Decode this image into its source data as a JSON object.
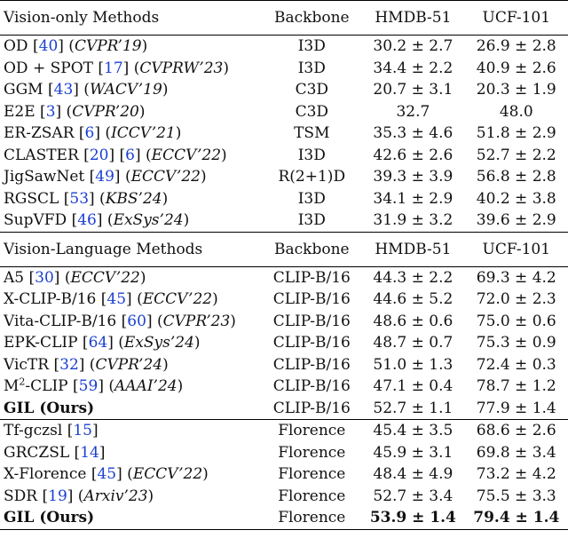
{
  "sections": [
    {
      "header": [
        "Vision-only Methods",
        "Backbone",
        "HMDB-51",
        "UCF-101"
      ],
      "rows": [
        {
          "name": "OD",
          "refs": [
            "40"
          ],
          "venue": "CVPR’19",
          "backbone": "I3D",
          "hmdb": "30.2 ± 2.7",
          "ucf": "26.9 ± 2.8"
        },
        {
          "name": "OD + SPOT",
          "refs": [
            "17"
          ],
          "venue": "CVPRW’23",
          "backbone": "I3D",
          "hmdb": "34.4 ± 2.2",
          "ucf": "40.9 ± 2.6"
        },
        {
          "name": "GGM",
          "refs": [
            "43"
          ],
          "venue": "WACV’19",
          "backbone": "C3D",
          "hmdb": "20.7 ± 3.1",
          "ucf": "20.3 ± 1.9"
        },
        {
          "name": "E2E",
          "refs": [
            "3"
          ],
          "venue": "CVPR’20",
          "backbone": "C3D",
          "hmdb": "32.7",
          "ucf": "48.0"
        },
        {
          "name": "ER-ZSAR",
          "refs": [
            "6"
          ],
          "venue": "ICCV’21",
          "backbone": "TSM",
          "hmdb": "35.3 ± 4.6",
          "ucf": "51.8 ± 2.9"
        },
        {
          "name": "CLASTER",
          "refs": [
            "20",
            "6"
          ],
          "venue": "ECCV’22",
          "backbone": "I3D",
          "hmdb": "42.6 ± 2.6",
          "ucf": "52.7 ± 2.2"
        },
        {
          "name": "JigSawNet",
          "refs": [
            "49"
          ],
          "venue": "ECCV’22",
          "backbone": "R(2+1)D",
          "hmdb": "39.3 ± 3.9",
          "ucf": "56.8 ± 2.8"
        },
        {
          "name": "RGSCL",
          "refs": [
            "53"
          ],
          "venue": "KBS’24",
          "backbone": "I3D",
          "hmdb": "34.1 ± 2.9",
          "ucf": "40.2 ± 3.8"
        },
        {
          "name": "SupVFD",
          "refs": [
            "46"
          ],
          "venue": "ExSys’24",
          "backbone": "I3D",
          "hmdb": "31.9 ± 3.2",
          "ucf": "39.6 ± 2.9"
        }
      ]
    },
    {
      "header": [
        "Vision-Language Methods",
        "Backbone",
        "HMDB-51",
        "UCF-101"
      ],
      "rows": [
        {
          "name": "A5",
          "refs": [
            "30"
          ],
          "venue": "ECCV’22",
          "backbone": "CLIP-B/16",
          "hmdb": "44.3 ± 2.2",
          "ucf": "69.3 ± 4.2"
        },
        {
          "name": "X-CLIP-B/16",
          "refs": [
            "45"
          ],
          "venue": "ECCV’22",
          "backbone": "CLIP-B/16",
          "hmdb": "44.6 ± 5.2",
          "ucf": "72.0 ± 2.3"
        },
        {
          "name": "Vita-CLIP-B/16",
          "refs": [
            "60"
          ],
          "venue": "CVPR’23",
          "backbone": "CLIP-B/16",
          "hmdb": "48.6 ± 0.6",
          "ucf": "75.0 ± 0.6"
        },
        {
          "name": "EPK-CLIP",
          "refs": [
            "64"
          ],
          "venue": "ExSys’24",
          "backbone": "CLIP-B/16",
          "hmdb": "48.7 ± 0.7",
          "ucf": "75.3 ± 0.9"
        },
        {
          "name": "VicTR",
          "refs": [
            "32"
          ],
          "venue": "CVPR’24",
          "backbone": "CLIP-B/16",
          "hmdb": "51.0 ± 1.3",
          "ucf": "72.4 ± 0.3"
        },
        {
          "name": "M",
          "sup": "2",
          "name_suffix": "-CLIP",
          "refs": [
            "59"
          ],
          "venue": "AAAI’24",
          "backbone": "CLIP-B/16",
          "hmdb": "47.1 ± 0.4",
          "ucf": "78.7 ± 1.2"
        },
        {
          "name": "GIL (Ours)",
          "bold": true,
          "backbone": "CLIP-B/16",
          "hmdb": "52.7 ± 1.1",
          "ucf": "77.9 ± 1.4"
        }
      ]
    },
    {
      "rows": [
        {
          "name": "Tf-gczsl",
          "refs": [
            "15"
          ],
          "backbone": "Florence",
          "hmdb": "45.4 ± 3.5",
          "ucf": "68.6 ± 2.6"
        },
        {
          "name": "GRCZSL",
          "refs": [
            "14"
          ],
          "backbone": "Florence",
          "hmdb": "45.9 ± 3.1",
          "ucf": "69.8 ± 3.4"
        },
        {
          "name": "X-Florence",
          "refs": [
            "45"
          ],
          "venue": "ECCV’22",
          "backbone": "Florence",
          "hmdb": "48.4 ± 4.9",
          "ucf": "73.2 ± 4.2"
        },
        {
          "name": "SDR",
          "refs": [
            "19"
          ],
          "venue": "Arxiv’23",
          "backbone": "Florence",
          "hmdb": "52.7 ± 3.4",
          "ucf": "75.5 ± 3.3"
        },
        {
          "name": "GIL (Ours)",
          "bold": true,
          "backbone": "Florence",
          "hmdb": "53.9 ± 1.4",
          "ucf": "79.4 ± 1.4",
          "bold_values": true
        }
      ]
    }
  ]
}
